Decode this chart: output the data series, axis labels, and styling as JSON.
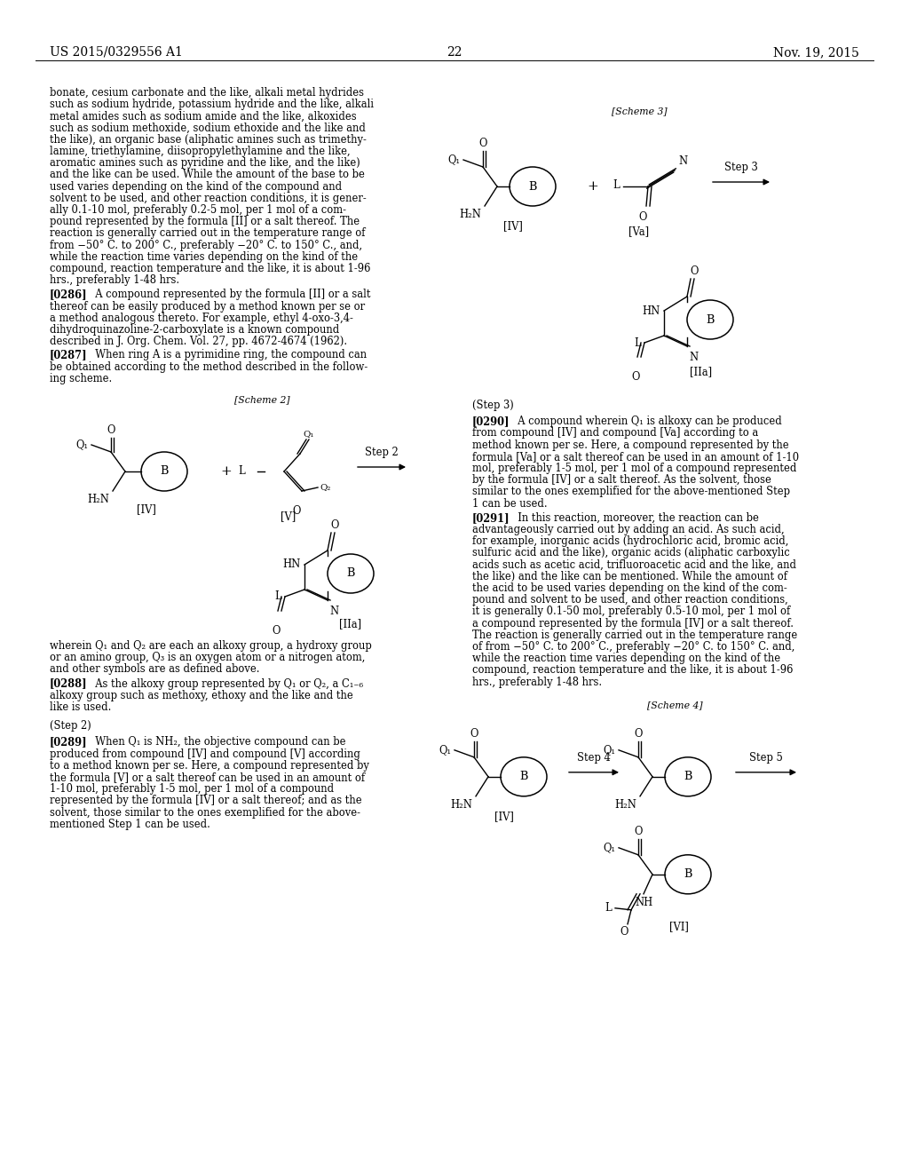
{
  "header_left": "US 2015/0329556 A1",
  "header_center": "22",
  "header_right": "Nov. 19, 2015",
  "bg": "#ffffff",
  "tc": "#000000",
  "left_body": [
    "bonate, cesium carbonate and the like, alkali metal hydrides",
    "such as sodium hydride, potassium hydride and the like, alkali",
    "metal amides such as sodium amide and the like, alkoxides",
    "such as sodium methoxide, sodium ethoxide and the like and",
    "the like), an organic base (aliphatic amines such as trimethy-",
    "lamine, triethylamine, diisopropylethylamine and the like,",
    "aromatic amines such as pyridine and the like, and the like)",
    "and the like can be used. While the amount of the base to be",
    "used varies depending on the kind of the compound and",
    "solvent to be used, and other reaction conditions, it is gener-",
    "ally 0.1-10 mol, preferably 0.2-5 mol, per 1 mol of a com-",
    "pound represented by the formula [II] or a salt thereof. The",
    "reaction is generally carried out in the temperature range of",
    "from −50° C. to 200° C., preferably −20° C. to 150° C., and,",
    "while the reaction time varies depending on the kind of the",
    "compound, reaction temperature and the like, it is about 1-96",
    "hrs., preferably 1-48 hrs."
  ],
  "p0286": [
    "[0286]   A compound represented by the formula [II] or a salt",
    "thereof can be easily produced by a method known per se or",
    "a method analogous thereto. For example, ethyl 4-oxo-3,4-",
    "dihydroquinazoline-2-carboxylate is a known compound",
    "described in J. Org. Chem. Vol. 27, pp. 4672-4674 (1962)."
  ],
  "p0287": [
    "[0287]   When ring A is a pyrimidine ring, the compound can",
    "be obtained according to the method described in the follow-",
    "ing scheme."
  ],
  "wherein_lines": [
    "wherein Q₁ and Q₂ are each an alkoxy group, a hydroxy group",
    "or an amino group, Q₃ is an oxygen atom or a nitrogen atom,",
    "and other symbols are as defined above."
  ],
  "p0288": [
    "[0288]   As the alkoxy group represented by Q₁ or Q₂, a C₁₋₆",
    "alkoxy group such as methoxy, ethoxy and the like and the",
    "like is used."
  ],
  "step2_heading": "(Step 2)",
  "p0289": [
    "[0289]   When Q₁ is NH₂, the objective compound can be",
    "produced from compound [IV] and compound [V] according",
    "to a method known per se. Here, a compound represented by",
    "the formula [V] or a salt thereof can be used in an amount of",
    "1-10 mol, preferably 1-5 mol, per 1 mol of a compound",
    "represented by the formula [IV] or a salt thereof; and as the",
    "solvent, those similar to the ones exemplified for the above-",
    "mentioned Step 1 can be used."
  ],
  "step3_heading": "(Step 3)",
  "p0290": [
    "[0290]   A compound wherein Q₁ is alkoxy can be produced",
    "from compound [IV] and compound [Va] according to a",
    "method known per se. Here, a compound represented by the",
    "formula [Va] or a salt thereof can be used in an amount of 1-10",
    "mol, preferably 1-5 mol, per 1 mol of a compound represented",
    "by the formula [IV] or a salt thereof. As the solvent, those",
    "similar to the ones exemplified for the above-mentioned Step",
    "1 can be used."
  ],
  "p0291": [
    "[0291]   In this reaction, moreover, the reaction can be",
    "advantageously carried out by adding an acid. As such acid,",
    "for example, inorganic acids (hydrochloric acid, bromic acid,",
    "sulfuric acid and the like), organic acids (aliphatic carboxylic",
    "acids such as acetic acid, trifluoroacetic acid and the like, and",
    "the like) and the like can be mentioned. While the amount of",
    "the acid to be used varies depending on the kind of the com-",
    "pound and solvent to be used, and other reaction conditions,",
    "it is generally 0.1-50 mol, preferably 0.5-10 mol, per 1 mol of",
    "a compound represented by the formula [IV] or a salt thereof.",
    "The reaction is generally carried out in the temperature range",
    "of from −50° C. to 200° C., preferably −20° C. to 150° C. and,",
    "while the reaction time varies depending on the kind of the",
    "compound, reaction temperature and the like, it is about 1-96",
    "hrs., preferably 1-48 hrs."
  ]
}
